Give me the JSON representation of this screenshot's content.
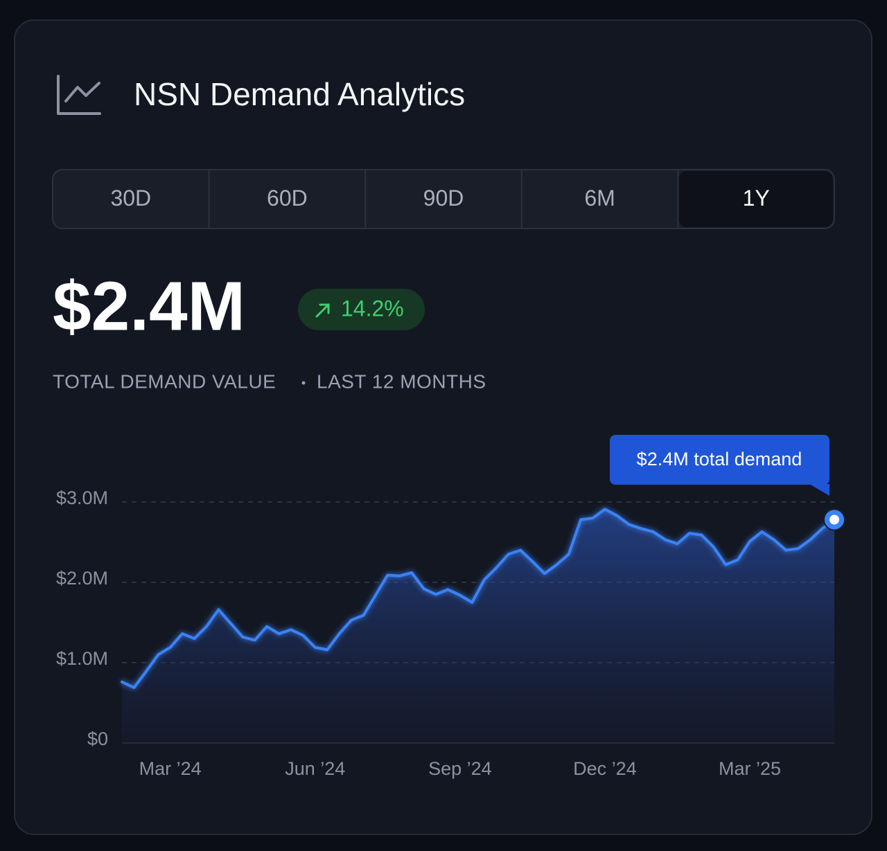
{
  "header": {
    "title": "NSN Demand Analytics"
  },
  "tabs": [
    {
      "label": "30D",
      "active": false
    },
    {
      "label": "60D",
      "active": false
    },
    {
      "label": "90D",
      "active": false
    },
    {
      "label": "6M",
      "active": false
    },
    {
      "label": "1Y",
      "active": true
    }
  ],
  "kpi": {
    "value": "$2.4M",
    "change": "14.2%",
    "caption": "TOTAL DEMAND VALUE",
    "period": "LAST 12 MONTHS"
  },
  "chart_data": {
    "type": "area",
    "categories": [
      null,
      null,
      null,
      null,
      "Mar ’24",
      null,
      null,
      null,
      null,
      null,
      null,
      null,
      null,
      null,
      null,
      null,
      "Jun ’24",
      null,
      null,
      null,
      null,
      null,
      null,
      null,
      null,
      null,
      null,
      null,
      "Sep ’24",
      null,
      null,
      null,
      null,
      null,
      null,
      null,
      null,
      null,
      null,
      null,
      "Dec ’24",
      null,
      null,
      null,
      null,
      null,
      null,
      null,
      null,
      null,
      null,
      null,
      "Mar ’25",
      null,
      null,
      null,
      null,
      null,
      null,
      null
    ],
    "values": [
      0.76,
      0.69,
      0.89,
      1.1,
      1.19,
      1.36,
      1.3,
      1.45,
      1.66,
      1.49,
      1.32,
      1.28,
      1.45,
      1.36,
      1.41,
      1.34,
      1.19,
      1.16,
      1.36,
      1.53,
      1.59,
      1.84,
      2.09,
      2.08,
      2.12,
      1.92,
      1.85,
      1.91,
      1.84,
      1.75,
      2.03,
      2.18,
      2.35,
      2.4,
      2.26,
      2.11,
      2.22,
      2.35,
      2.78,
      2.8,
      2.91,
      2.83,
      2.72,
      2.67,
      2.63,
      2.53,
      2.48,
      2.61,
      2.59,
      2.44,
      2.22,
      2.28,
      2.51,
      2.63,
      2.53,
      2.4,
      2.42,
      2.53,
      2.67,
      2.78
    ],
    "color": "#3b82f6",
    "ylim": [
      0,
      3
    ],
    "yticks": [
      {
        "value": 0,
        "label": "$0"
      },
      {
        "value": 1,
        "label": "$1.0M"
      },
      {
        "value": 2,
        "label": "$2.0M"
      },
      {
        "value": 3,
        "label": "$3.0M"
      }
    ],
    "grid": true,
    "annotation": "$2.4M total demand"
  }
}
